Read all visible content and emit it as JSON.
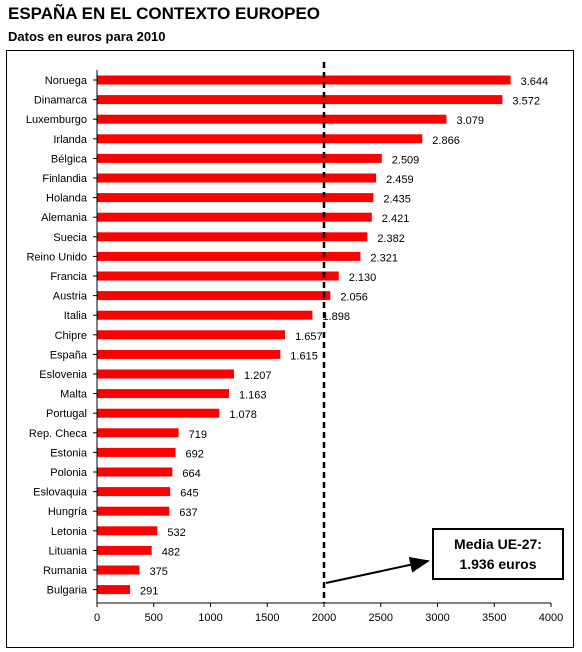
{
  "chart_data": {
    "type": "bar",
    "orientation": "horizontal",
    "title": "ESPAÑA EN EL CONTEXTO EUROPEO",
    "subtitle": "Datos en euros para 2010",
    "categories": [
      "Noruega",
      "Dinamarca",
      "Luxemburgo",
      "Irlanda",
      "Bélgica",
      "Finlandia",
      "Holanda",
      "Alemania",
      "Suecia",
      "Reino Unido",
      "Francia",
      "Austria",
      "Italia",
      "Chipre",
      "España",
      "Eslovenia",
      "Malta",
      "Portugal",
      "Rep. Checa",
      "Estonia",
      "Polonia",
      "Eslovaquia",
      "Hungría",
      "Letonia",
      "Lituania",
      "Rumania",
      "Bulgaria"
    ],
    "values": [
      3644,
      3572,
      3079,
      2866,
      2509,
      2459,
      2435,
      2421,
      2382,
      2321,
      2130,
      2056,
      1898,
      1657,
      1615,
      1207,
      1163,
      1078,
      719,
      692,
      664,
      645,
      637,
      532,
      482,
      375,
      291
    ],
    "value_labels": [
      "3.644",
      "3.572",
      "3.079",
      "2.866",
      "2.509",
      "2.459",
      "2.435",
      "2.421",
      "2.382",
      "2.321",
      "2.130",
      "2.056",
      "1.898",
      "1.657",
      "1.615",
      "1.207",
      "1.163",
      "1.078",
      "719",
      "692",
      "664",
      "645",
      "637",
      "532",
      "482",
      "375",
      "291"
    ],
    "xlim": [
      0,
      4000
    ],
    "xticks": [
      0,
      500,
      1000,
      1500,
      2000,
      2500,
      3000,
      3500,
      4000
    ],
    "bar_color": "#ff0000",
    "reference_line": {
      "value": 2000,
      "style": "dashed"
    },
    "annotation": {
      "line1": "Media UE-27:",
      "line2": "1.936 euros"
    },
    "grid": false,
    "legend": "none"
  }
}
